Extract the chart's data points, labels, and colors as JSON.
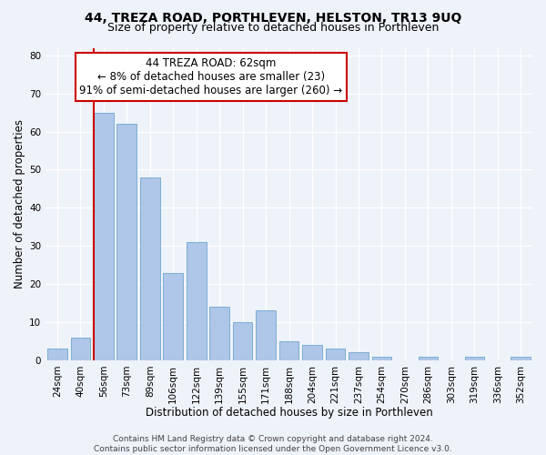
{
  "title": "44, TREZA ROAD, PORTHLEVEN, HELSTON, TR13 9UQ",
  "subtitle": "Size of property relative to detached houses in Porthleven",
  "xlabel": "Distribution of detached houses by size in Porthleven",
  "ylabel": "Number of detached properties",
  "bar_labels": [
    "24sqm",
    "40sqm",
    "56sqm",
    "73sqm",
    "89sqm",
    "106sqm",
    "122sqm",
    "139sqm",
    "155sqm",
    "171sqm",
    "188sqm",
    "204sqm",
    "221sqm",
    "237sqm",
    "254sqm",
    "270sqm",
    "286sqm",
    "303sqm",
    "319sqm",
    "336sqm",
    "352sqm"
  ],
  "bar_values": [
    3,
    6,
    65,
    62,
    48,
    23,
    31,
    14,
    10,
    13,
    5,
    4,
    3,
    2,
    1,
    0,
    1,
    0,
    1,
    0,
    1
  ],
  "bar_color": "#aec6e8",
  "bar_edge_color": "#7bafd4",
  "vline_x_index": 2,
  "vline_color": "#cc0000",
  "annotation_title": "44 TREZA ROAD: 62sqm",
  "annotation_line1": "← 8% of detached houses are smaller (23)",
  "annotation_line2": "91% of semi-detached houses are larger (260) →",
  "annotation_box_color": "#ffffff",
  "annotation_box_edge_color": "#cc0000",
  "ylim": [
    0,
    82
  ],
  "yticks": [
    0,
    10,
    20,
    30,
    40,
    50,
    60,
    70,
    80
  ],
  "footer_line1": "Contains HM Land Registry data © Crown copyright and database right 2024.",
  "footer_line2": "Contains public sector information licensed under the Open Government Licence v3.0.",
  "background_color": "#eef2f9",
  "grid_color": "#ffffff",
  "title_fontsize": 10,
  "subtitle_fontsize": 9,
  "axis_label_fontsize": 8.5,
  "tick_fontsize": 7.5,
  "annotation_fontsize": 8.5,
  "footer_fontsize": 6.5
}
